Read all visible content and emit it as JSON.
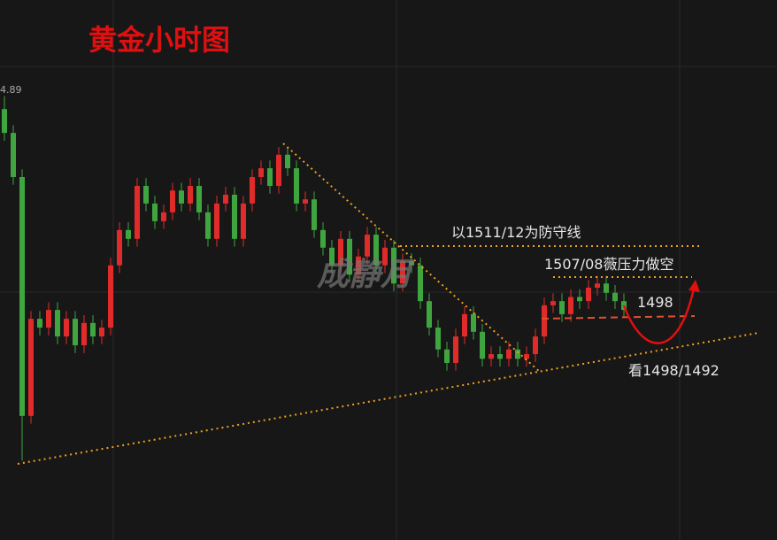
{
  "chart_data": {
    "type": "candlestick",
    "title": "黄金小时图",
    "price_label": "4.89",
    "watermark": "成静月",
    "annotations": [
      "以1511/12为防守线",
      "1507/08薇压力做空",
      "1498",
      "看1498/1492"
    ],
    "ylim": [
      1559,
      1455
    ],
    "up_color": "#e02b2b",
    "down_color": "#3fa63f",
    "open": [
      1538.0,
      1533.4,
      1524.9,
      1478.9,
      1497.6,
      1495.9,
      1499.3,
      1494.2,
      1497.6,
      1492.5,
      1496.8,
      1494.2,
      1495.9,
      1507.9,
      1514.7,
      1513.0,
      1523.2,
      1519.8,
      1516.4,
      1518.1,
      1522.3,
      1519.8,
      1523.2,
      1518.1,
      1513.0,
      1519.8,
      1521.5,
      1513.0,
      1519.8,
      1524.9,
      1526.6,
      1523.2,
      1529.2,
      1526.6,
      1519.8,
      1520.6,
      1514.7,
      1511.3,
      1507.9,
      1513.0,
      1506.1,
      1509.6,
      1513.8,
      1507.9,
      1511.3,
      1504.4,
      1508.7,
      1507.9,
      1501.0,
      1495.9,
      1491.7,
      1489.1,
      1494.2,
      1498.5,
      1495.1,
      1489.9,
      1490.8,
      1489.9,
      1491.7,
      1489.9,
      1490.8,
      1494.2,
      1500.2,
      1501.0,
      1498.5,
      1501.8,
      1501.0,
      1503.6,
      1504.4,
      1502.6,
      1501.0
    ],
    "high": [
      1540.5,
      1534.9,
      1526.4,
      1499.1,
      1499.1,
      1500.8,
      1500.8,
      1499.1,
      1499.1,
      1498.3,
      1498.3,
      1497.4,
      1509.4,
      1516.2,
      1516.2,
      1524.7,
      1524.7,
      1521.3,
      1519.6,
      1523.8,
      1523.8,
      1524.7,
      1524.7,
      1519.6,
      1521.3,
      1523.0,
      1523.0,
      1521.3,
      1526.4,
      1528.1,
      1528.1,
      1530.7,
      1530.7,
      1528.1,
      1522.1,
      1522.1,
      1516.2,
      1512.8,
      1514.5,
      1514.5,
      1511.1,
      1515.3,
      1515.3,
      1512.8,
      1512.8,
      1510.2,
      1510.2,
      1509.4,
      1502.5,
      1497.4,
      1493.2,
      1495.7,
      1500.0,
      1500.0,
      1496.6,
      1492.3,
      1492.3,
      1493.2,
      1493.2,
      1492.3,
      1495.7,
      1501.7,
      1502.5,
      1502.5,
      1503.3,
      1503.3,
      1505.1,
      1505.9,
      1505.9,
      1504.1,
      1502.5
    ],
    "low": [
      1531.9,
      1523.4,
      1470.3,
      1477.4,
      1494.4,
      1494.4,
      1492.7,
      1492.7,
      1491.0,
      1491.0,
      1492.7,
      1492.7,
      1494.4,
      1506.4,
      1511.5,
      1511.5,
      1518.3,
      1514.9,
      1514.9,
      1516.6,
      1518.3,
      1518.3,
      1516.6,
      1511.5,
      1511.5,
      1518.3,
      1511.5,
      1511.5,
      1518.3,
      1523.4,
      1521.7,
      1521.7,
      1525.1,
      1518.3,
      1518.3,
      1513.2,
      1509.8,
      1506.4,
      1506.4,
      1504.6,
      1504.6,
      1508.1,
      1506.4,
      1506.4,
      1502.9,
      1502.9,
      1506.4,
      1499.5,
      1494.4,
      1490.2,
      1487.6,
      1487.6,
      1492.7,
      1493.6,
      1488.4,
      1488.4,
      1488.4,
      1488.4,
      1488.4,
      1488.4,
      1489.3,
      1492.7,
      1498.7,
      1497.0,
      1497.0,
      1499.5,
      1499.5,
      1502.1,
      1501.1,
      1499.5,
      1497.8
    ],
    "close": [
      1533.4,
      1524.9,
      1478.9,
      1497.6,
      1495.9,
      1499.3,
      1494.2,
      1497.6,
      1492.5,
      1496.8,
      1494.2,
      1495.9,
      1507.9,
      1514.7,
      1513.0,
      1523.2,
      1519.8,
      1516.4,
      1518.1,
      1522.3,
      1519.8,
      1523.2,
      1518.1,
      1513.0,
      1519.8,
      1521.5,
      1513.0,
      1519.8,
      1524.9,
      1526.6,
      1523.2,
      1529.2,
      1526.6,
      1519.8,
      1520.6,
      1514.7,
      1511.3,
      1507.9,
      1513.0,
      1506.1,
      1509.6,
      1513.8,
      1507.9,
      1511.3,
      1504.4,
      1508.7,
      1507.9,
      1501.0,
      1495.9,
      1491.7,
      1489.1,
      1494.2,
      1498.5,
      1495.1,
      1489.9,
      1490.8,
      1489.9,
      1491.7,
      1489.9,
      1490.8,
      1494.2,
      1500.2,
      1501.0,
      1498.5,
      1501.8,
      1501.0,
      1503.6,
      1504.4,
      1502.6,
      1501.0,
      1499.3
    ]
  }
}
